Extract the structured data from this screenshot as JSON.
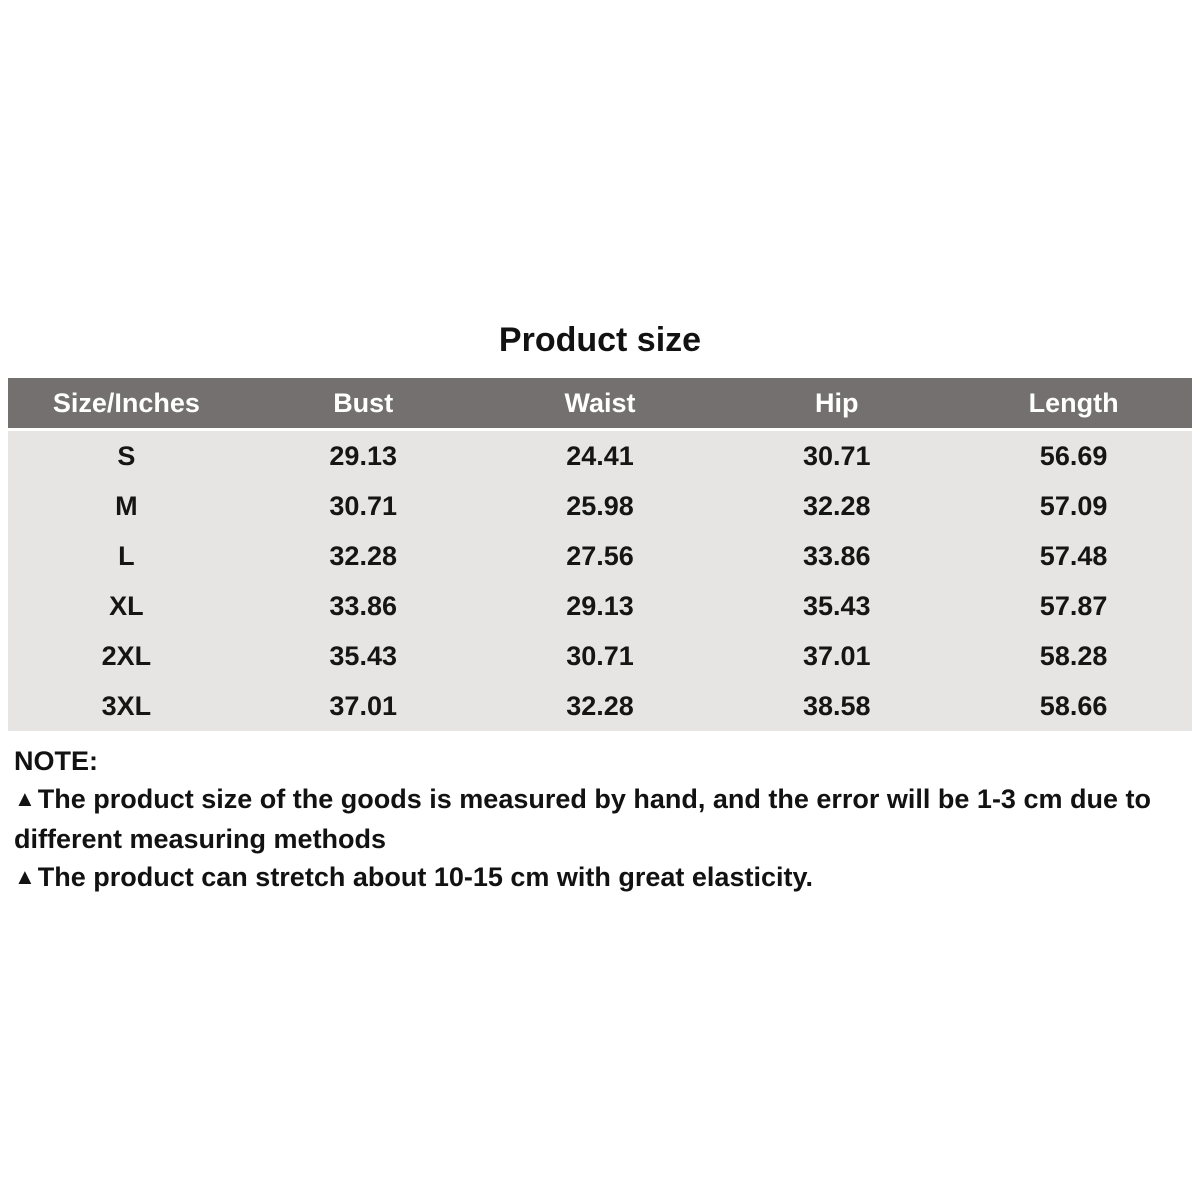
{
  "title": "Product size",
  "table": {
    "columns": [
      "Size/Inches",
      "Bust",
      "Waist",
      "Hip",
      "Length"
    ],
    "rows": [
      [
        "S",
        "29.13",
        "24.41",
        "30.71",
        "56.69"
      ],
      [
        "M",
        "30.71",
        "25.98",
        "32.28",
        "57.09"
      ],
      [
        "L",
        "32.28",
        "27.56",
        "33.86",
        "57.48"
      ],
      [
        "XL",
        "33.86",
        "29.13",
        "35.43",
        "57.87"
      ],
      [
        "2XL",
        "35.43",
        "30.71",
        "37.01",
        "58.28"
      ],
      [
        "3XL",
        "37.01",
        "32.28",
        "38.58",
        "58.66"
      ]
    ]
  },
  "notes": {
    "heading": "NOTE:",
    "bullet": "▲",
    "items": [
      {
        "line1": "The product size of the goods is measured by hand, and the error will be 1-3 cm due to",
        "line2": "different measuring methods"
      },
      {
        "line1": "The product can stretch about 10-15 cm with great elasticity."
      }
    ]
  },
  "colors": {
    "header_bg": "#747070",
    "row_bg": "#e6e5e4",
    "header_text": "#ffffff",
    "body_text": "#151515"
  },
  "chart_data": {
    "type": "table",
    "title": "Product size",
    "unit": "inches",
    "columns": [
      "Size/Inches",
      "Bust",
      "Waist",
      "Hip",
      "Length"
    ],
    "rows": [
      {
        "size": "S",
        "bust": 29.13,
        "waist": 24.41,
        "hip": 30.71,
        "length": 56.69
      },
      {
        "size": "M",
        "bust": 30.71,
        "waist": 25.98,
        "hip": 32.28,
        "length": 57.09
      },
      {
        "size": "L",
        "bust": 32.28,
        "waist": 27.56,
        "hip": 33.86,
        "length": 57.48
      },
      {
        "size": "XL",
        "bust": 33.86,
        "waist": 29.13,
        "hip": 35.43,
        "length": 57.87
      },
      {
        "size": "2XL",
        "bust": 35.43,
        "waist": 30.71,
        "hip": 37.01,
        "length": 58.28
      },
      {
        "size": "3XL",
        "bust": 37.01,
        "waist": 32.28,
        "hip": 38.58,
        "length": 58.66
      }
    ]
  }
}
